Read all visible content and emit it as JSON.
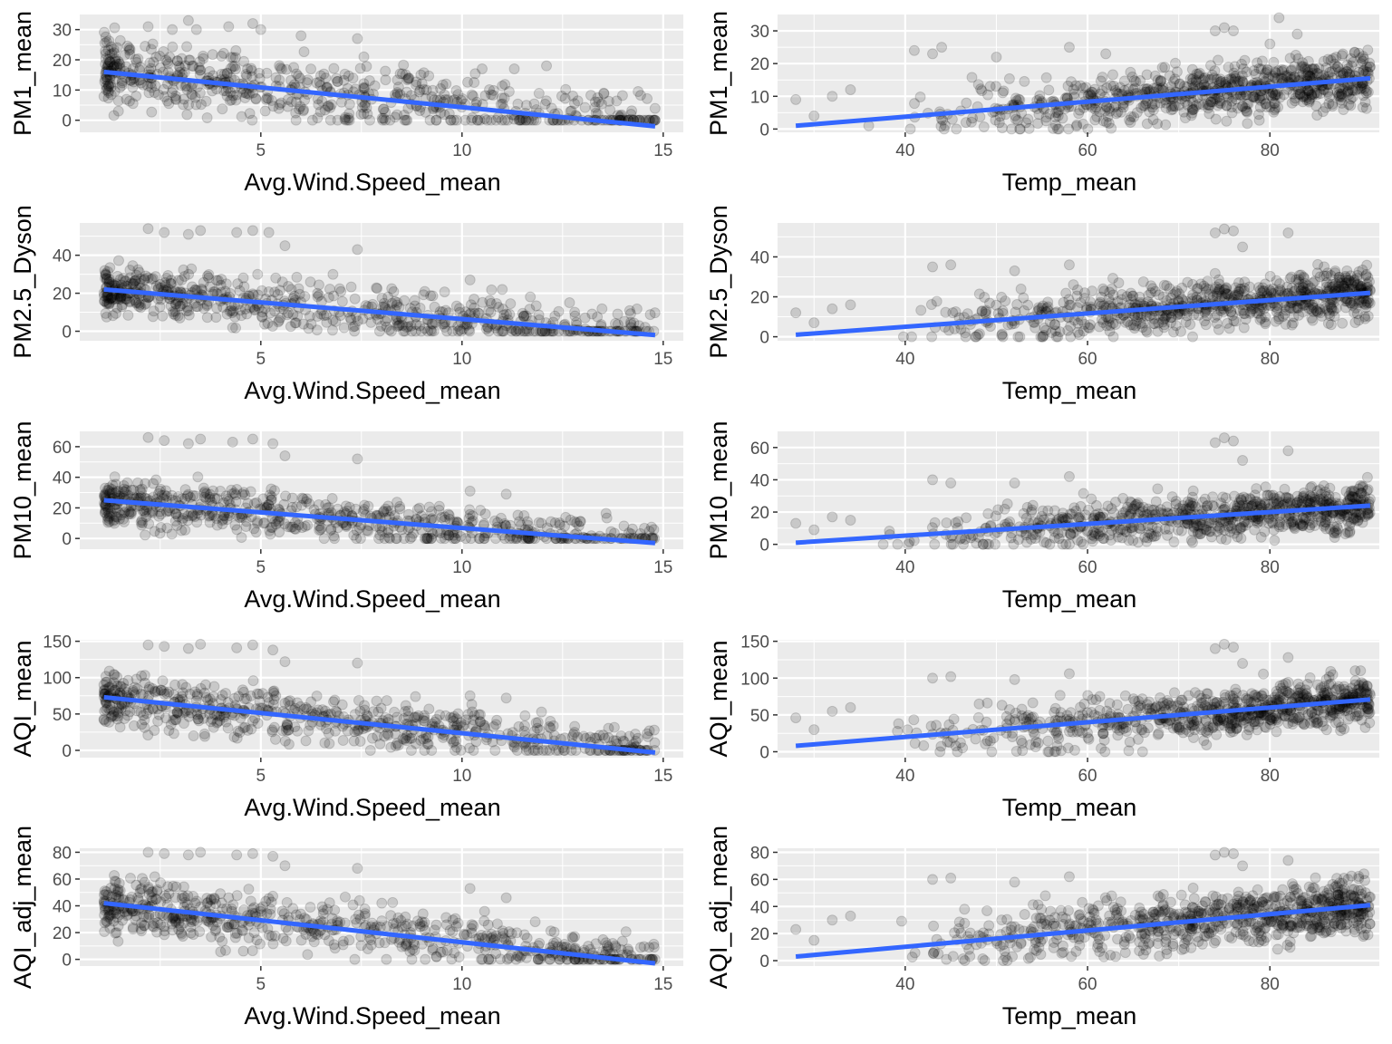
{
  "style": {
    "panel_bg": "#ebebeb",
    "grid_major": "#ffffff",
    "point_color": "#000000",
    "point_alpha": 0.15,
    "fit_color": "#3366ff"
  },
  "chart_data": [
    {
      "type": "scatter",
      "xlabel": "Avg.Wind.Speed_mean",
      "ylabel": "PM1_mean",
      "xlim": [
        0.5,
        15.5
      ],
      "ylim": [
        -4,
        35
      ],
      "xticks": [
        5,
        10,
        15
      ],
      "yticks": [
        0,
        10,
        20,
        30
      ],
      "trend": {
        "x": [
          1.1,
          14.8
        ],
        "y": [
          16,
          -2
        ]
      },
      "cloud": {
        "x_range": [
          1.1,
          14.8
        ],
        "y_range": [
          0,
          34
        ],
        "n": 650,
        "seed": 11
      },
      "points": [
        [
          1.3,
          22
        ],
        [
          2.2,
          31
        ],
        [
          2.8,
          30
        ],
        [
          3.2,
          33
        ],
        [
          3.4,
          30
        ],
        [
          4.2,
          31
        ],
        [
          4.8,
          32
        ],
        [
          5.0,
          30
        ],
        [
          6.0,
          28
        ],
        [
          7.4,
          27
        ],
        [
          10.5,
          17
        ],
        [
          11.3,
          17
        ],
        [
          12.1,
          18
        ],
        [
          13.4,
          6
        ],
        [
          14.2,
          2
        ]
      ]
    },
    {
      "type": "scatter",
      "xlabel": "Temp_mean",
      "ylabel": "PM1_mean",
      "xlim": [
        26,
        92
      ],
      "ylim": [
        -1,
        35
      ],
      "xticks": [
        40,
        60,
        80
      ],
      "yticks": [
        0,
        10,
        20,
        30
      ],
      "trend": {
        "x": [
          28,
          91
        ],
        "y": [
          1,
          15.5
        ]
      },
      "cloud": {
        "x_range": [
          28,
          91
        ],
        "y_range": [
          0,
          26
        ],
        "n": 750,
        "seed": 23
      },
      "points": [
        [
          28,
          9
        ],
        [
          30,
          4
        ],
        [
          32,
          10
        ],
        [
          34,
          12
        ],
        [
          36,
          1
        ],
        [
          41,
          24
        ],
        [
          43,
          23
        ],
        [
          44,
          25
        ],
        [
          50,
          22
        ],
        [
          58,
          25
        ],
        [
          62,
          23
        ],
        [
          74,
          30
        ],
        [
          75,
          31
        ],
        [
          76,
          30
        ],
        [
          80,
          26
        ],
        [
          81,
          34
        ],
        [
          83,
          29
        ],
        [
          90,
          20
        ],
        [
          91,
          19
        ]
      ]
    },
    {
      "type": "scatter",
      "xlabel": "Avg.Wind.Speed_mean",
      "ylabel": "PM2.5_Dyson",
      "xlim": [
        0.5,
        15.5
      ],
      "ylim": [
        -5,
        57
      ],
      "xticks": [
        5,
        10,
        15
      ],
      "yticks": [
        0,
        20,
        40
      ],
      "trend": {
        "x": [
          1.1,
          14.8
        ],
        "y": [
          22,
          -2
        ]
      },
      "cloud": {
        "x_range": [
          1.1,
          14.8
        ],
        "y_range": [
          0,
          42
        ],
        "n": 650,
        "seed": 37
      },
      "points": [
        [
          2.2,
          54
        ],
        [
          2.6,
          52
        ],
        [
          3.2,
          51
        ],
        [
          3.5,
          53
        ],
        [
          4.4,
          52
        ],
        [
          4.8,
          53
        ],
        [
          5.2,
          52
        ],
        [
          5.6,
          45
        ],
        [
          7.4,
          43
        ],
        [
          10.2,
          27
        ],
        [
          11.0,
          22
        ],
        [
          12.8,
          10
        ],
        [
          14.2,
          2
        ]
      ]
    },
    {
      "type": "scatter",
      "xlabel": "Temp_mean",
      "ylabel": "PM2.5_Dyson",
      "xlim": [
        26,
        92
      ],
      "ylim": [
        -2,
        57
      ],
      "xticks": [
        40,
        60,
        80
      ],
      "yticks": [
        0,
        20,
        40
      ],
      "trend": {
        "x": [
          28,
          91
        ],
        "y": [
          1,
          22
        ]
      },
      "cloud": {
        "x_range": [
          28,
          91
        ],
        "y_range": [
          0,
          40
        ],
        "n": 750,
        "seed": 41
      },
      "points": [
        [
          28,
          12
        ],
        [
          30,
          7
        ],
        [
          32,
          14
        ],
        [
          34,
          16
        ],
        [
          43,
          35
        ],
        [
          45,
          36
        ],
        [
          52,
          33
        ],
        [
          58,
          36
        ],
        [
          74,
          52
        ],
        [
          75,
          54
        ],
        [
          76,
          53
        ],
        [
          77,
          45
        ],
        [
          82,
          52
        ],
        [
          90,
          25
        ],
        [
          91,
          23
        ]
      ]
    },
    {
      "type": "scatter",
      "xlabel": "Avg.Wind.Speed_mean",
      "ylabel": "PM10_mean",
      "xlim": [
        0.5,
        15.5
      ],
      "ylim": [
        -7,
        70
      ],
      "xticks": [
        5,
        10,
        15
      ],
      "yticks": [
        0,
        20,
        40,
        60
      ],
      "trend": {
        "x": [
          1.1,
          14.8
        ],
        "y": [
          25,
          -3
        ]
      },
      "cloud": {
        "x_range": [
          1.1,
          14.8
        ],
        "y_range": [
          0,
          48
        ],
        "n": 650,
        "seed": 53
      },
      "points": [
        [
          2.2,
          66
        ],
        [
          2.6,
          64
        ],
        [
          3.2,
          62
        ],
        [
          3.5,
          65
        ],
        [
          4.3,
          63
        ],
        [
          4.8,
          65
        ],
        [
          5.3,
          62
        ],
        [
          5.6,
          54
        ],
        [
          7.4,
          52
        ],
        [
          10.2,
          31
        ],
        [
          11.1,
          29
        ],
        [
          12.8,
          11
        ],
        [
          14.2,
          3
        ]
      ]
    },
    {
      "type": "scatter",
      "xlabel": "Temp_mean",
      "ylabel": "PM10_mean",
      "xlim": [
        26,
        92
      ],
      "ylim": [
        -3,
        70
      ],
      "xticks": [
        40,
        60,
        80
      ],
      "yticks": [
        0,
        20,
        40,
        60
      ],
      "trend": {
        "x": [
          28,
          91
        ],
        "y": [
          1,
          24
        ]
      },
      "cloud": {
        "x_range": [
          28,
          91
        ],
        "y_range": [
          0,
          46
        ],
        "n": 750,
        "seed": 67
      },
      "points": [
        [
          28,
          13
        ],
        [
          30,
          9
        ],
        [
          32,
          17
        ],
        [
          34,
          15
        ],
        [
          43,
          40
        ],
        [
          45,
          38
        ],
        [
          52,
          38
        ],
        [
          58,
          42
        ],
        [
          74,
          63
        ],
        [
          75,
          66
        ],
        [
          76,
          64
        ],
        [
          77,
          52
        ],
        [
          82,
          58
        ],
        [
          90,
          32
        ],
        [
          91,
          28
        ]
      ]
    },
    {
      "type": "scatter",
      "xlabel": "Avg.Wind.Speed_mean",
      "ylabel": "AQI_mean",
      "xlim": [
        0.5,
        15.5
      ],
      "ylim": [
        -10,
        152
      ],
      "xticks": [
        5,
        10,
        15
      ],
      "yticks": [
        0,
        50,
        100,
        150
      ],
      "trend": {
        "x": [
          1.1,
          14.8
        ],
        "y": [
          73,
          -3
        ]
      },
      "cloud": {
        "x_range": [
          1.1,
          14.8
        ],
        "y_range": [
          0,
          110
        ],
        "n": 650,
        "seed": 71
      },
      "points": [
        [
          2.2,
          145
        ],
        [
          2.6,
          143
        ],
        [
          3.2,
          140
        ],
        [
          3.5,
          146
        ],
        [
          4.4,
          141
        ],
        [
          4.8,
          145
        ],
        [
          5.3,
          138
        ],
        [
          5.6,
          122
        ],
        [
          7.4,
          120
        ],
        [
          10.2,
          75
        ],
        [
          11.1,
          72
        ],
        [
          12.8,
          33
        ],
        [
          14.2,
          5
        ]
      ]
    },
    {
      "type": "scatter",
      "xlabel": "Temp_mean",
      "ylabel": "AQI_mean",
      "xlim": [
        26,
        92
      ],
      "ylim": [
        -8,
        152
      ],
      "xticks": [
        40,
        60,
        80
      ],
      "yticks": [
        0,
        50,
        100,
        150
      ],
      "trend": {
        "x": [
          28,
          91
        ],
        "y": [
          8,
          71
        ]
      },
      "cloud": {
        "x_range": [
          28,
          91
        ],
        "y_range": [
          0,
          110
        ],
        "n": 750,
        "seed": 83
      },
      "points": [
        [
          28,
          46
        ],
        [
          30,
          30
        ],
        [
          32,
          55
        ],
        [
          34,
          60
        ],
        [
          43,
          100
        ],
        [
          45,
          102
        ],
        [
          52,
          98
        ],
        [
          58,
          106
        ],
        [
          74,
          140
        ],
        [
          75,
          146
        ],
        [
          76,
          142
        ],
        [
          77,
          120
        ],
        [
          82,
          128
        ],
        [
          90,
          82
        ],
        [
          91,
          77
        ]
      ]
    },
    {
      "type": "scatter",
      "xlabel": "Avg.Wind.Speed_mean",
      "ylabel": "AQI_adj_mean",
      "xlim": [
        0.5,
        15.5
      ],
      "ylim": [
        -5,
        83
      ],
      "xticks": [
        5,
        10,
        15
      ],
      "yticks": [
        0,
        20,
        40,
        60,
        80
      ],
      "trend": {
        "x": [
          1.1,
          14.8
        ],
        "y": [
          42,
          -3
        ]
      },
      "cloud": {
        "x_range": [
          1.1,
          14.8
        ],
        "y_range": [
          0,
          64
        ],
        "n": 650,
        "seed": 97
      },
      "points": [
        [
          2.2,
          80
        ],
        [
          2.6,
          79
        ],
        [
          3.2,
          78
        ],
        [
          3.5,
          80
        ],
        [
          4.4,
          78
        ],
        [
          4.8,
          79
        ],
        [
          5.3,
          77
        ],
        [
          5.6,
          70
        ],
        [
          7.4,
          68
        ],
        [
          10.2,
          53
        ],
        [
          11.1,
          46
        ],
        [
          12.8,
          17
        ],
        [
          14.2,
          3
        ]
      ]
    },
    {
      "type": "scatter",
      "xlabel": "Temp_mean",
      "ylabel": "AQI_adj_mean",
      "xlim": [
        26,
        92
      ],
      "ylim": [
        -4,
        83
      ],
      "xticks": [
        40,
        60,
        80
      ],
      "yticks": [
        0,
        20,
        40,
        60,
        80
      ],
      "trend": {
        "x": [
          28,
          91
        ],
        "y": [
          3,
          41
        ]
      },
      "cloud": {
        "x_range": [
          28,
          91
        ],
        "y_range": [
          0,
          66
        ],
        "n": 750,
        "seed": 103
      },
      "points": [
        [
          28,
          23
        ],
        [
          30,
          15
        ],
        [
          32,
          30
        ],
        [
          34,
          33
        ],
        [
          43,
          60
        ],
        [
          45,
          61
        ],
        [
          52,
          58
        ],
        [
          58,
          62
        ],
        [
          74,
          78
        ],
        [
          75,
          80
        ],
        [
          76,
          79
        ],
        [
          77,
          70
        ],
        [
          82,
          74
        ],
        [
          90,
          52
        ],
        [
          91,
          47
        ]
      ]
    }
  ]
}
